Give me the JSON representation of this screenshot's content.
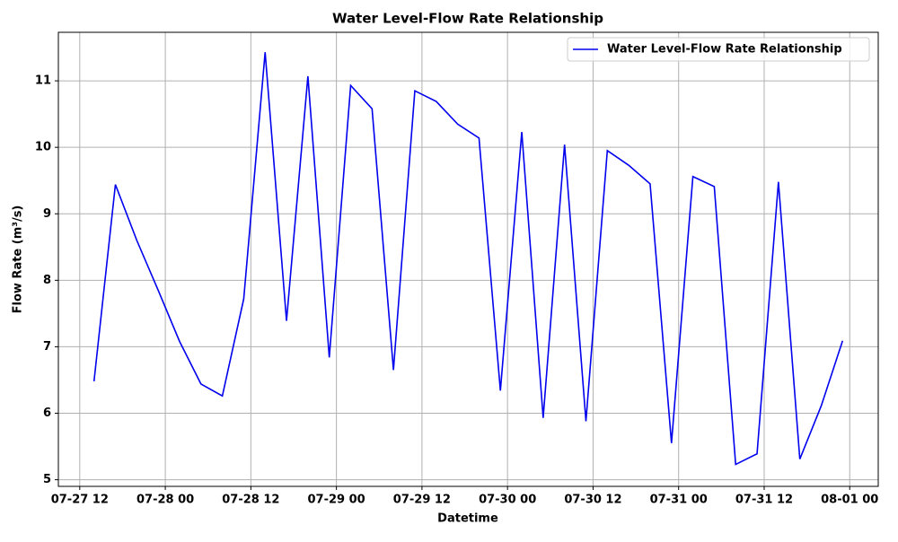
{
  "chart_data": {
    "type": "line",
    "title": "Water Level-Flow Rate Relationship",
    "x_label": "Datetime",
    "y_label": "Flow Rate (m³/s)",
    "x": [
      "07-27 14",
      "07-27 17",
      "07-27 20",
      "07-27 23",
      "07-28 02",
      "07-28 05",
      "07-28 08",
      "07-28 11",
      "07-28 14",
      "07-28 17",
      "07-28 20",
      "07-28 23",
      "07-29 02",
      "07-29 05",
      "07-29 08",
      "07-29 11",
      "07-29 14",
      "07-29 17",
      "07-29 20",
      "07-29 23",
      "07-30 02",
      "07-30 05",
      "07-30 08",
      "07-30 11",
      "07-30 14",
      "07-30 17",
      "07-30 20",
      "07-30 23",
      "07-31 02",
      "07-31 05",
      "07-31 08",
      "07-31 11",
      "07-31 14",
      "07-31 17",
      "07-31 20",
      "07-31 23"
    ],
    "series": [
      {
        "name": "Water Level-Flow Rate Relationship",
        "color": "#0000ee",
        "values": [
          6.48,
          9.44,
          8.6,
          7.85,
          7.08,
          6.44,
          6.26,
          7.72,
          11.43,
          7.39,
          11.07,
          6.84,
          10.93,
          10.58,
          6.65,
          10.85,
          10.69,
          10.35,
          10.14,
          6.34,
          10.23,
          5.93,
          10.04,
          5.88,
          9.95,
          9.73,
          9.45,
          5.55,
          9.56,
          9.41,
          5.23,
          5.39,
          9.48,
          5.31,
          6.11,
          7.09
        ]
      }
    ],
    "xlim": [
      "07-27 09",
      "08-01 04"
    ],
    "xticks": [
      "07-27 12",
      "07-28 00",
      "07-28 12",
      "07-29 00",
      "07-29 12",
      "07-30 00",
      "07-30 12",
      "07-31 00",
      "07-31 12",
      "08-01 00"
    ],
    "ylim": [
      4.9,
      11.73
    ],
    "yticks": [
      5,
      6,
      7,
      8,
      9,
      10,
      11
    ],
    "grid": true,
    "legend": "upper right"
  }
}
